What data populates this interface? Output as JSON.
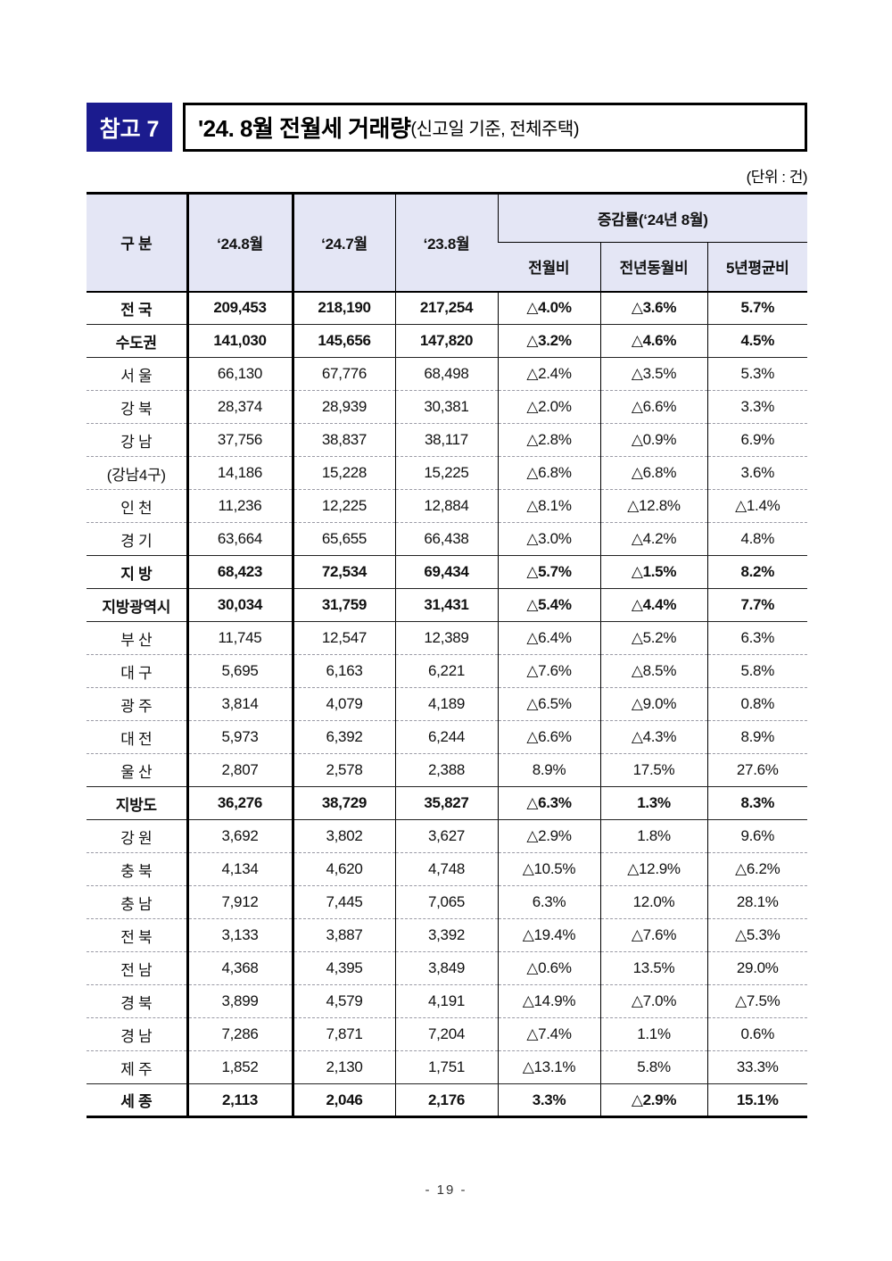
{
  "page": {
    "ref_label": "참고 7",
    "title_main": "'24. 8월 전월세 거래량",
    "title_sub": "(신고일 기준, 전체주택)",
    "unit_label": "(단위 : 건)",
    "page_number": "- 19 -"
  },
  "colors": {
    "ref_box_navy": "#1b1b8e",
    "table_header_bg": "#e4e6f5",
    "border_black": "#000000",
    "dashed_separator": "#9a9aa5"
  },
  "table": {
    "corner_header": "구 분",
    "month_headers": [
      "‘24.8월",
      "‘24.7월",
      "‘23.8월"
    ],
    "change_group_header": "증감률(‘24년 8월)",
    "change_sub_headers": [
      "전월비",
      "전년동월비",
      "5년평균비"
    ],
    "rows": [
      {
        "region": "전 국",
        "bold": true,
        "sep": "solid",
        "values": [
          "209,453",
          "218,190",
          "217,254",
          "△4.0%",
          "△3.6%",
          "5.7%"
        ]
      },
      {
        "region": "수도권",
        "bold": true,
        "sep": "solid",
        "values": [
          "141,030",
          "145,656",
          "147,820",
          "△3.2%",
          "△4.6%",
          "4.5%"
        ]
      },
      {
        "region": "서 울",
        "bold": false,
        "sep": "dashed",
        "values": [
          "66,130",
          "67,776",
          "68,498",
          "△2.4%",
          "△3.5%",
          "5.3%"
        ]
      },
      {
        "region": "강 북",
        "bold": false,
        "sep": "dashed",
        "values": [
          "28,374",
          "28,939",
          "30,381",
          "△2.0%",
          "△6.6%",
          "3.3%"
        ]
      },
      {
        "region": "강 남",
        "bold": false,
        "sep": "dashed",
        "values": [
          "37,756",
          "38,837",
          "38,117",
          "△2.8%",
          "△0.9%",
          "6.9%"
        ]
      },
      {
        "region": "(강남4구)",
        "bold": false,
        "sep": "dashed",
        "values": [
          "14,186",
          "15,228",
          "15,225",
          "△6.8%",
          "△6.8%",
          "3.6%"
        ]
      },
      {
        "region": "인 천",
        "bold": false,
        "sep": "dashed",
        "values": [
          "11,236",
          "12,225",
          "12,884",
          "△8.1%",
          "△12.8%",
          "△1.4%"
        ]
      },
      {
        "region": "경 기",
        "bold": false,
        "sep": "solid",
        "values": [
          "63,664",
          "65,655",
          "66,438",
          "△3.0%",
          "△4.2%",
          "4.8%"
        ]
      },
      {
        "region": "지 방",
        "bold": true,
        "sep": "solid",
        "values": [
          "68,423",
          "72,534",
          "69,434",
          "△5.7%",
          "△1.5%",
          "8.2%"
        ]
      },
      {
        "region": "지방광역시",
        "bold": true,
        "sep": "solid",
        "values": [
          "30,034",
          "31,759",
          "31,431",
          "△5.4%",
          "△4.4%",
          "7.7%"
        ]
      },
      {
        "region": "부 산",
        "bold": false,
        "sep": "dashed",
        "values": [
          "11,745",
          "12,547",
          "12,389",
          "△6.4%",
          "△5.2%",
          "6.3%"
        ]
      },
      {
        "region": "대 구",
        "bold": false,
        "sep": "dashed",
        "values": [
          "5,695",
          "6,163",
          "6,221",
          "△7.6%",
          "△8.5%",
          "5.8%"
        ]
      },
      {
        "region": "광 주",
        "bold": false,
        "sep": "dashed",
        "values": [
          "3,814",
          "4,079",
          "4,189",
          "△6.5%",
          "△9.0%",
          "0.8%"
        ]
      },
      {
        "region": "대 전",
        "bold": false,
        "sep": "dashed",
        "values": [
          "5,973",
          "6,392",
          "6,244",
          "△6.6%",
          "△4.3%",
          "8.9%"
        ]
      },
      {
        "region": "울 산",
        "bold": false,
        "sep": "solid",
        "values": [
          "2,807",
          "2,578",
          "2,388",
          "8.9%",
          "17.5%",
          "27.6%"
        ]
      },
      {
        "region": "지방도",
        "bold": true,
        "sep": "solid",
        "values": [
          "36,276",
          "38,729",
          "35,827",
          "△6.3%",
          "1.3%",
          "8.3%"
        ]
      },
      {
        "region": "강 원",
        "bold": false,
        "sep": "dashed",
        "values": [
          "3,692",
          "3,802",
          "3,627",
          "△2.9%",
          "1.8%",
          "9.6%"
        ]
      },
      {
        "region": "충 북",
        "bold": false,
        "sep": "dashed",
        "values": [
          "4,134",
          "4,620",
          "4,748",
          "△10.5%",
          "△12.9%",
          "△6.2%"
        ]
      },
      {
        "region": "충 남",
        "bold": false,
        "sep": "dashed",
        "values": [
          "7,912",
          "7,445",
          "7,065",
          "6.3%",
          "12.0%",
          "28.1%"
        ]
      },
      {
        "region": "전 북",
        "bold": false,
        "sep": "dashed",
        "values": [
          "3,133",
          "3,887",
          "3,392",
          "△19.4%",
          "△7.6%",
          "△5.3%"
        ]
      },
      {
        "region": "전 남",
        "bold": false,
        "sep": "dashed",
        "values": [
          "4,368",
          "4,395",
          "3,849",
          "△0.6%",
          "13.5%",
          "29.0%"
        ]
      },
      {
        "region": "경 북",
        "bold": false,
        "sep": "dashed",
        "values": [
          "3,899",
          "4,579",
          "4,191",
          "△14.9%",
          "△7.0%",
          "△7.5%"
        ]
      },
      {
        "region": "경 남",
        "bold": false,
        "sep": "dashed",
        "values": [
          "7,286",
          "7,871",
          "7,204",
          "△7.4%",
          "1.1%",
          "0.6%"
        ]
      },
      {
        "region": "제 주",
        "bold": false,
        "sep": "solid",
        "values": [
          "1,852",
          "2,130",
          "1,751",
          "△13.1%",
          "5.8%",
          "33.3%"
        ]
      },
      {
        "region": "세 종",
        "bold": true,
        "sep": "none",
        "values": [
          "2,113",
          "2,046",
          "2,176",
          "3.3%",
          "△2.9%",
          "15.1%"
        ]
      }
    ]
  }
}
